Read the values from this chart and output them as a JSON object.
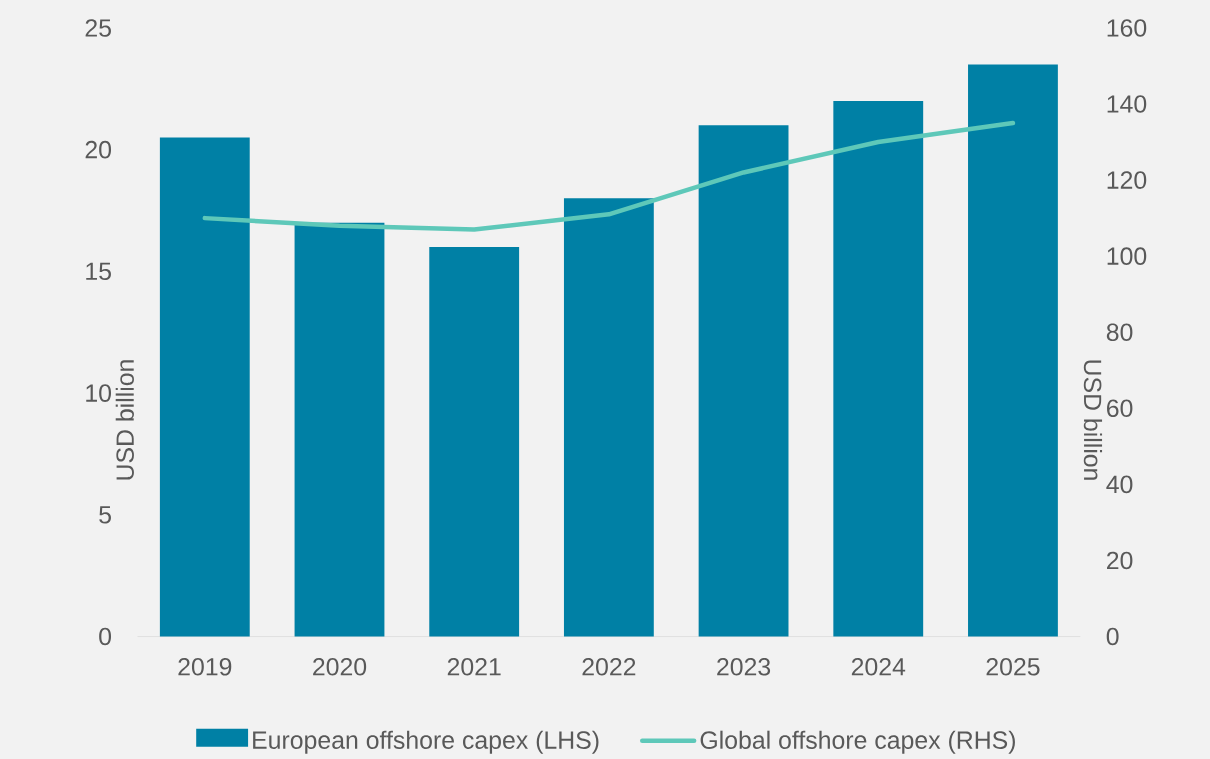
{
  "chart_data": {
    "type": "bar",
    "categories": [
      "2019",
      "2020",
      "2021",
      "2022",
      "2023",
      "2024",
      "2025"
    ],
    "ylabel": "USD billion",
    "y2label": "USD billion",
    "ylim": [
      0,
      25
    ],
    "yticks": [
      0,
      5,
      10,
      15,
      20,
      25
    ],
    "y2lim": [
      0,
      160
    ],
    "y2ticks": [
      0,
      20,
      40,
      60,
      80,
      100,
      120,
      140,
      160
    ],
    "legend": "bottom",
    "series": [
      {
        "name": "European offshore capex (LHS)",
        "color": "#0080a5",
        "values": [
          20.5,
          17,
          16,
          18,
          21,
          22,
          23.5
        ]
      },
      {
        "name": "Global offshore capex (RHS)",
        "type": "line",
        "axis": "y2",
        "color": "#5ec8b9",
        "values": [
          110,
          108,
          107,
          111,
          122,
          130,
          135
        ]
      }
    ]
  }
}
